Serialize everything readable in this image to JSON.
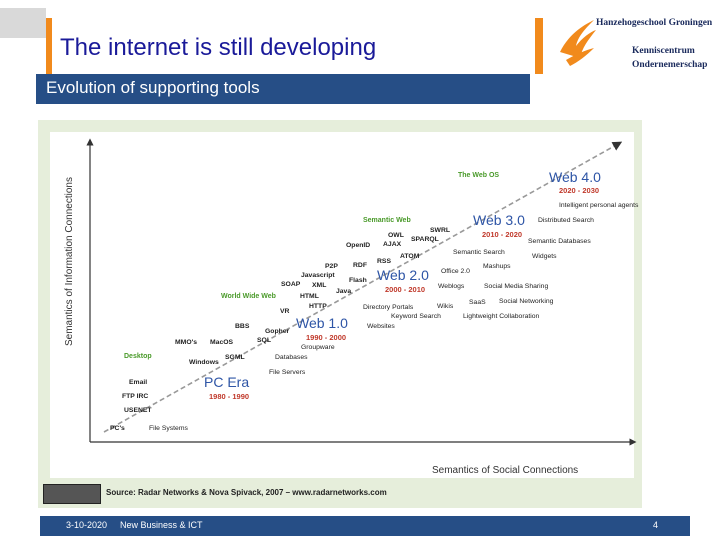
{
  "slide": {
    "title": "The internet is still developing",
    "subtitle": "Evolution of supporting tools"
  },
  "logo": {
    "name": "Hanzehogeschool Groningen",
    "line1": "Kenniscentrum",
    "line2": "Ondernemerschap"
  },
  "diagram": {
    "y_axis": "Semantics of Information Connections",
    "x_axis": "Semantics of Social Connections",
    "eras": [
      {
        "name": "PC Era",
        "years": "1980 - 1990"
      },
      {
        "name": "Web 1.0",
        "years": "1990 - 2000"
      },
      {
        "name": "Web 2.0",
        "years": "2000 - 2010"
      },
      {
        "name": "Web 3.0",
        "years": "2010 - 2020"
      },
      {
        "name": "Web 4.0",
        "years": "2020 - 2030"
      }
    ],
    "phases": [
      "Desktop",
      "World Wide Web",
      "Semantic Web",
      "The Web OS"
    ],
    "terms": {
      "pcs": "PC's",
      "file_systems": "File Systems",
      "usenet": "USENET",
      "ftp_irc": "FTP IRC",
      "email": "Email",
      "file_servers": "File Servers",
      "windows": "Windows",
      "sgml": "SGML",
      "databases": "Databases",
      "mmos": "MMO's",
      "macos": "MacOS",
      "sql": "SQL",
      "groupware": "Groupware",
      "bbs": "BBS",
      "gopher": "Gopher",
      "vr": "VR",
      "websites": "Websites",
      "html": "HTML",
      "http": "HTTP",
      "java": "Java",
      "soap": "SOAP",
      "xml": "XML",
      "javascript": "Javascript",
      "flash": "Flash",
      "p2p": "P2P",
      "rdf": "RDF",
      "rss": "RSS",
      "atom": "ATOM",
      "openid": "OpenID",
      "ajax": "AJAX",
      "owl": "OWL",
      "sparql": "SPARQL",
      "swrl": "SWRL",
      "directory_portals": "Directory Portals",
      "keyword_search": "Keyword Search",
      "wikis": "Wikis",
      "saas": "SaaS",
      "weblogs": "Weblogs",
      "office2": "Office 2.0",
      "mashups": "Mashups",
      "semantic_search": "Semantic Search",
      "social_media_sharing": "Social Media Sharing",
      "social_networking": "Social Networking",
      "lightweight_collab": "Lightweight Collaboration",
      "widgets": "Widgets",
      "semantic_databases": "Semantic Databases",
      "distributed_search": "Distributed Search",
      "intelligent_agents": "Intelligent personal agents"
    }
  },
  "source": "Source: Radar Networks & Nova Spivack, 2007 – www.radarnetworks.com",
  "footer": {
    "date": "3-10-2020",
    "course": "New Business & ICT",
    "page": "4"
  }
}
